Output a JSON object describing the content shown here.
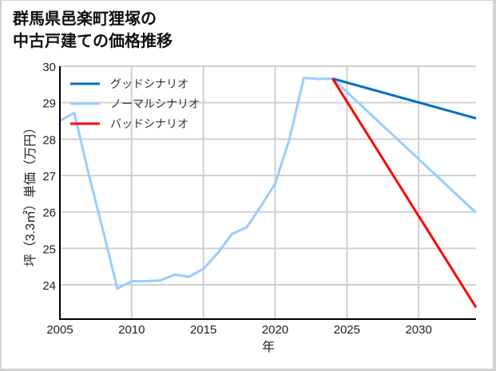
{
  "title_lines": [
    "群馬県邑楽町狸塚の",
    "中古戸建ての価格推移"
  ],
  "chart_data": {
    "type": "line",
    "title": "群馬県邑楽町狸塚の中古戸建ての価格推移",
    "xlabel": "年",
    "ylabel": "坪（3.3㎡）単価（万円）",
    "xlim": [
      2005,
      2034
    ],
    "ylim": [
      23.05,
      30
    ],
    "xticks": [
      2005,
      2010,
      2015,
      2020,
      2025,
      2030
    ],
    "yticks": [
      24,
      25,
      26,
      27,
      28,
      29,
      30
    ],
    "grid": true,
    "legend_position": "upper left",
    "series": [
      {
        "name": "ノーマルシナリオ (historical)",
        "color": "#99ccff",
        "x": [
          2005,
          2006,
          2007,
          2008,
          2009,
          2010,
          2011,
          2012,
          2013,
          2014,
          2015,
          2016,
          2017,
          2018,
          2019,
          2020,
          2021,
          2022,
          2023,
          2024
        ],
        "y": [
          28.5,
          28.72,
          27.05,
          25.5,
          23.9,
          24.1,
          24.1,
          24.12,
          24.28,
          24.22,
          24.44,
          24.87,
          25.4,
          25.57,
          26.15,
          26.78,
          28.0,
          29.68,
          29.65,
          29.66
        ]
      },
      {
        "name": "グッドシナリオ",
        "color": "#0070c0",
        "x": [
          2024,
          2034
        ],
        "y": [
          29.66,
          28.57
        ]
      },
      {
        "name": "ノーマルシナリオ",
        "color": "#99ccff",
        "x": [
          2024,
          2034
        ],
        "y": [
          29.66,
          25.98
        ]
      },
      {
        "name": "バッドシナリオ",
        "color": "#ff0000",
        "x": [
          2024,
          2034
        ],
        "y": [
          29.66,
          23.38
        ]
      }
    ]
  },
  "legend": [
    {
      "label": "グッドシナリオ",
      "color": "#0070c0"
    },
    {
      "label": "ノーマルシナリオ",
      "color": "#99ccff"
    },
    {
      "label": "バッドシナリオ",
      "color": "#ff0000"
    }
  ],
  "axes": {
    "x_label": "年",
    "y_label": "坪（3.3㎡）単価（万円）",
    "x_tick_labels": [
      "2005",
      "2010",
      "2015",
      "2020",
      "2025",
      "2030"
    ],
    "y_tick_labels": [
      "24",
      "25",
      "26",
      "27",
      "28",
      "29",
      "30"
    ]
  }
}
